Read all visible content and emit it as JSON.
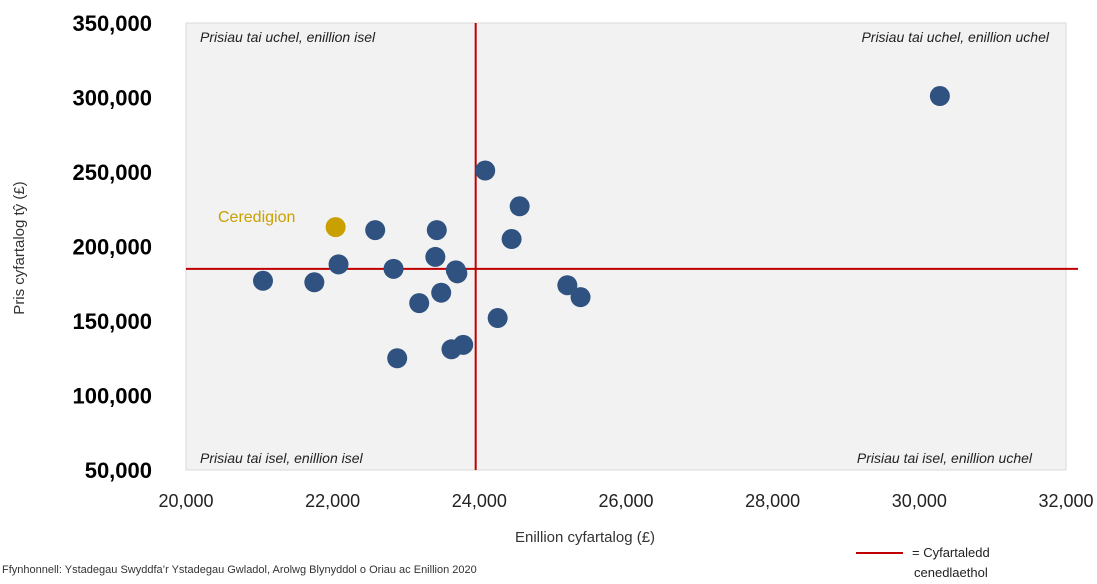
{
  "chart_data": {
    "type": "scatter",
    "xlabel": "Enillion cyfartalog (£)",
    "ylabel": "Pris cyfartalog tŷ (£)",
    "xlim": [
      20000,
      32000
    ],
    "ylim": [
      50000,
      350000
    ],
    "x_ticks": [
      20000,
      22000,
      24000,
      26000,
      28000,
      30000,
      32000
    ],
    "x_tick_labels": [
      "20,000",
      "22,000",
      "24,000",
      "26,000",
      "28,000",
      "30,000",
      "32,000"
    ],
    "y_ticks": [
      50000,
      100000,
      150000,
      200000,
      250000,
      300000,
      350000
    ],
    "y_tick_labels": [
      "50,000",
      "100,000",
      "150,000",
      "200,000",
      "250,000",
      "300,000",
      "350,000"
    ],
    "grid": false,
    "reference_lines": {
      "x": 23950,
      "y": 185000,
      "color": "#c00000"
    },
    "quadrant_labels": {
      "top_left": "Prisiau tai uchel, enillion isel",
      "top_right": "Prisiau tai uchel, enillion uchel",
      "bottom_left": "Prisiau tai isel, enillion isel",
      "bottom_right": "Prisiau tai isel, enillion uchel"
    },
    "series": [
      {
        "color": "#2f5280",
        "points": [
          {
            "x": 21050,
            "y": 177000
          },
          {
            "x": 21750,
            "y": 176000
          },
          {
            "x": 22080,
            "y": 188000
          },
          {
            "x": 22580,
            "y": 211000
          },
          {
            "x": 22830,
            "y": 185000
          },
          {
            "x": 22880,
            "y": 125000
          },
          {
            "x": 23180,
            "y": 162000
          },
          {
            "x": 23400,
            "y": 193000
          },
          {
            "x": 23420,
            "y": 211000
          },
          {
            "x": 23480,
            "y": 169000
          },
          {
            "x": 23620,
            "y": 131000
          },
          {
            "x": 23680,
            "y": 184000
          },
          {
            "x": 23700,
            "y": 182000
          },
          {
            "x": 23780,
            "y": 134000
          },
          {
            "x": 24080,
            "y": 251000
          },
          {
            "x": 24250,
            "y": 152000
          },
          {
            "x": 24440,
            "y": 205000
          },
          {
            "x": 24550,
            "y": 227000
          },
          {
            "x": 25200,
            "y": 174000
          },
          {
            "x": 25380,
            "y": 166000
          },
          {
            "x": 30280,
            "y": 301000
          }
        ]
      },
      {
        "name": "Ceredigion",
        "color": "#c9a000",
        "points": [
          {
            "x": 22040,
            "y": 213000
          }
        ]
      }
    ],
    "annotations": [
      {
        "text": "Ceredigion",
        "color": "#c9a000"
      }
    ],
    "legend": {
      "label_line1": "= Cyfartaledd",
      "label_line2": "cenedlaethol",
      "color": "#c00000",
      "placement": "bottom-right"
    },
    "source": "Ffynhonnell: Ystadegau Swyddfa’r Ystadegau Gwladol, Arolwg Blynyddol o Oriau ac Enillion 2020"
  }
}
